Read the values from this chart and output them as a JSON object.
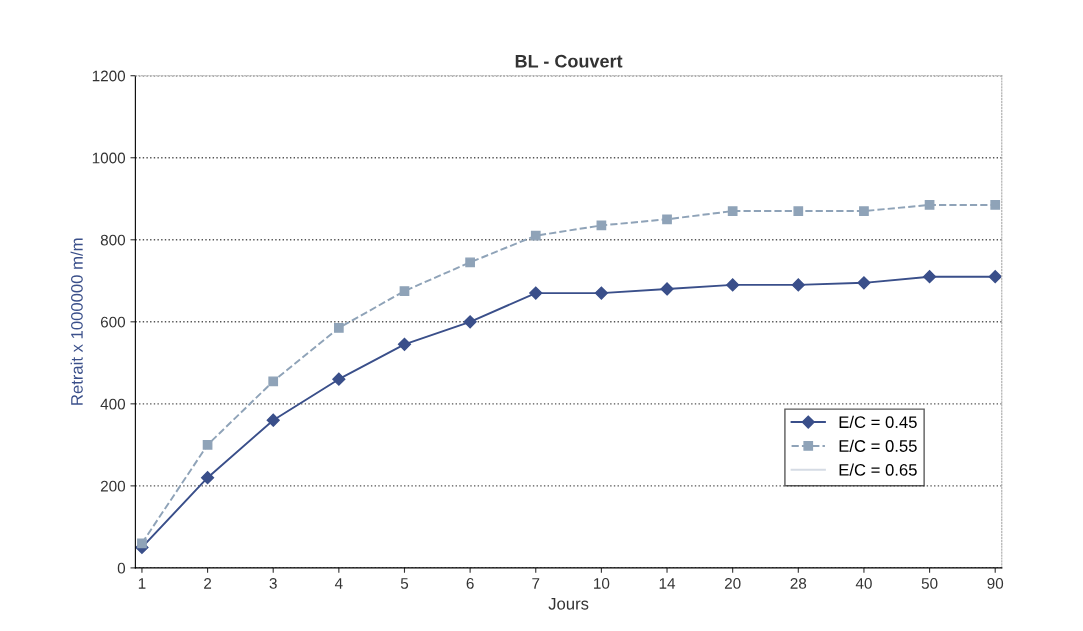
{
  "chart_data": {
    "type": "line",
    "title": "BL - Couvert",
    "xlabel": "Jours",
    "ylabel": "Retrait x 1000000 m/m",
    "categories": [
      "1",
      "2",
      "3",
      "4",
      "5",
      "6",
      "7",
      "10",
      "14",
      "20",
      "28",
      "40",
      "50",
      "90"
    ],
    "ylim": [
      0,
      1200
    ],
    "yticks": [
      0,
      200,
      400,
      600,
      800,
      1000,
      1200
    ],
    "grid": "y",
    "legend": "lower right",
    "series": [
      {
        "name": "E/C = 0.45",
        "color": "#3a4f8a",
        "marker": "diamond",
        "line_style": "solid",
        "values": [
          50,
          220,
          360,
          460,
          545,
          600,
          670,
          670,
          680,
          690,
          690,
          695,
          710,
          710
        ]
      },
      {
        "name": "E/C = 0.55",
        "color": "#8fa3b8",
        "marker": "square",
        "line_style": "dashed",
        "values": [
          60,
          300,
          455,
          585,
          675,
          745,
          810,
          835,
          850,
          870,
          870,
          870,
          885,
          885
        ]
      },
      {
        "name": "E/C = 0.65",
        "color": "#d5dbe4",
        "marker": "none",
        "line_style": "solid",
        "values": [
          null,
          null,
          null,
          null,
          null,
          null,
          null,
          null,
          null,
          null,
          null,
          null,
          null,
          null
        ]
      }
    ]
  }
}
